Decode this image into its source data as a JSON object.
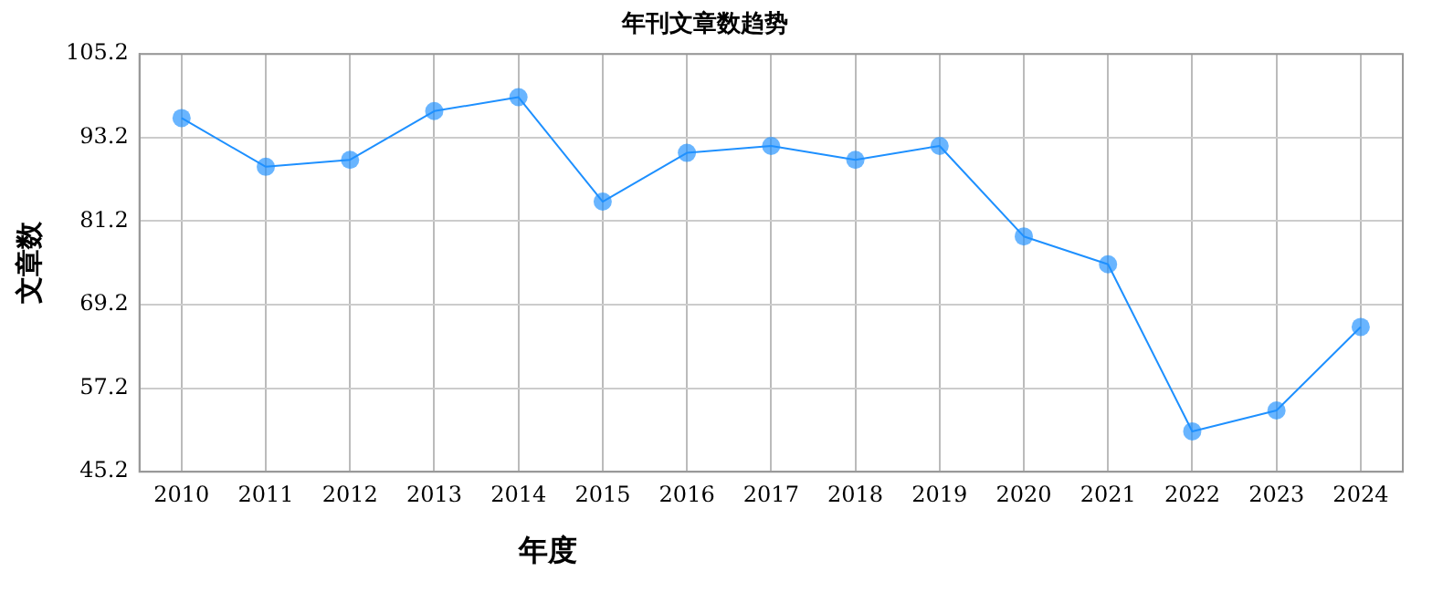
{
  "chart_data": {
    "type": "line",
    "title": "年刊文章数趋势",
    "xlabel": "年度",
    "ylabel": "文章数",
    "categories": [
      "2010",
      "2011",
      "2012",
      "2013",
      "2014",
      "2015",
      "2016",
      "2017",
      "2018",
      "2019",
      "2020",
      "2021",
      "2022",
      "2023",
      "2024"
    ],
    "series": [
      {
        "color": "#1e90ff",
        "values": [
          96,
          89,
          90,
          97,
          99,
          84,
          91,
          92,
          90,
          92,
          79,
          75,
          51,
          54,
          66
        ]
      }
    ],
    "ylim": [
      45.2,
      105.2
    ],
    "yticks": [
      45.2,
      57.2,
      69.2,
      81.2,
      93.2,
      105.2
    ],
    "grid": true,
    "marker": "circle",
    "line_style": "solid",
    "legend": false
  }
}
